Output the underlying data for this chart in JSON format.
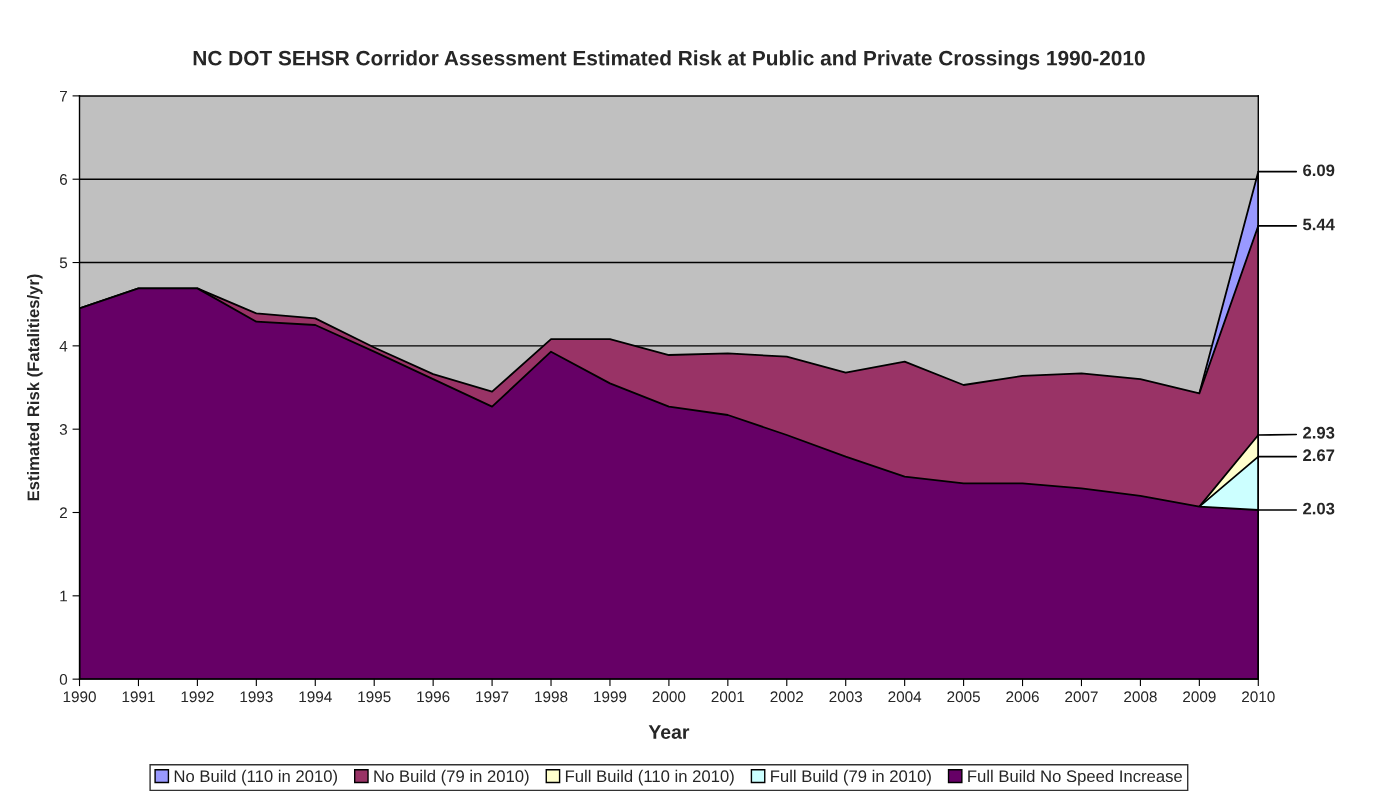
{
  "chart_data": {
    "type": "area",
    "title": "NC DOT SEHSR Corridor Assessment Estimated Risk at Public and Private Crossings 1990-2010",
    "xlabel": "Year",
    "ylabel": "Estimated Risk (Fatalities/yr)",
    "categories": [
      "1990",
      "1991",
      "1992",
      "1993",
      "1994",
      "1995",
      "1996",
      "1997",
      "1998",
      "1999",
      "2000",
      "2001",
      "2002",
      "2003",
      "2004",
      "2005",
      "2006",
      "2007",
      "2008",
      "2009",
      "2010"
    ],
    "series": [
      {
        "name": "No Build (110 in 2010)",
        "color": "#9999ff",
        "values": [
          null,
          null,
          null,
          null,
          null,
          null,
          null,
          null,
          null,
          null,
          null,
          null,
          null,
          null,
          null,
          null,
          null,
          null,
          null,
          3.43,
          6.09
        ],
        "value_labels": [
          null,
          null,
          null,
          null,
          null,
          null,
          null,
          null,
          null,
          null,
          null,
          null,
          null,
          null,
          null,
          null,
          null,
          null,
          null,
          null,
          "6.09"
        ]
      },
      {
        "name": "No Build (79 in 2010)",
        "color": "#993366",
        "values": [
          4.45,
          4.69,
          4.69,
          4.39,
          4.33,
          3.98,
          3.66,
          3.45,
          4.08,
          4.08,
          3.89,
          3.91,
          3.87,
          3.68,
          3.81,
          3.53,
          3.64,
          3.67,
          3.6,
          3.43,
          5.44
        ],
        "value_labels": [
          null,
          null,
          null,
          null,
          null,
          null,
          null,
          null,
          null,
          null,
          null,
          null,
          null,
          null,
          null,
          null,
          null,
          null,
          null,
          null,
          "5.44"
        ]
      },
      {
        "name": "Full Build (110 in 2010)",
        "color": "#ffffcc",
        "values": [
          null,
          null,
          null,
          null,
          null,
          null,
          null,
          null,
          null,
          null,
          null,
          null,
          null,
          null,
          null,
          null,
          null,
          null,
          null,
          2.07,
          2.93
        ],
        "value_labels": [
          null,
          null,
          null,
          null,
          null,
          null,
          null,
          null,
          null,
          null,
          null,
          null,
          null,
          null,
          null,
          null,
          null,
          null,
          null,
          null,
          "2.93"
        ]
      },
      {
        "name": "Full Build (79 in 2010)",
        "color": "#ccffff",
        "values": [
          null,
          null,
          null,
          null,
          null,
          null,
          null,
          null,
          null,
          null,
          null,
          null,
          null,
          null,
          null,
          null,
          null,
          null,
          null,
          2.07,
          2.67
        ],
        "value_labels": [
          null,
          null,
          null,
          null,
          null,
          null,
          null,
          null,
          null,
          null,
          null,
          null,
          null,
          null,
          null,
          null,
          null,
          null,
          null,
          null,
          "2.67"
        ]
      },
      {
        "name": "Full Build No Speed Increase",
        "color": "#660066",
        "values": [
          4.45,
          4.69,
          4.69,
          4.29,
          4.25,
          3.93,
          3.6,
          3.27,
          3.93,
          3.55,
          3.27,
          3.17,
          2.93,
          2.67,
          2.43,
          2.35,
          2.35,
          2.29,
          2.2,
          2.07,
          2.03
        ],
        "value_labels": [
          null,
          null,
          null,
          null,
          null,
          null,
          null,
          null,
          null,
          null,
          null,
          null,
          null,
          null,
          null,
          null,
          null,
          null,
          null,
          null,
          "2.03"
        ]
      }
    ],
    "ylim": [
      0,
      7
    ],
    "yticks": [
      0,
      1,
      2,
      3,
      4,
      5,
      6,
      7
    ],
    "grid": "y",
    "legend": "bottom"
  }
}
